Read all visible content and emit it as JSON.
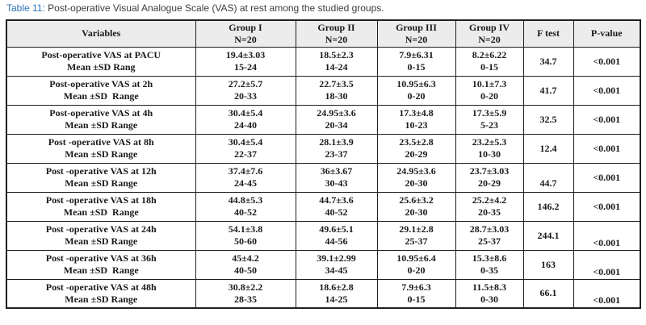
{
  "caption": {
    "label": "Table 11:",
    "text": " Post-operative Visual Analogue Scale (VAS) at rest among the studied groups."
  },
  "colors": {
    "caption_label": "#2e74b5",
    "caption_text": "#3d3d3d",
    "header_bg": "#ececec",
    "border": "#1f1f1f",
    "text": "#1a1a1a"
  },
  "table": {
    "columns": [
      {
        "label": "Variables",
        "sub": ""
      },
      {
        "label": "Group I",
        "sub": "N=20"
      },
      {
        "label": "Group II",
        "sub": "N=20"
      },
      {
        "label": "Group III",
        "sub": "N=20"
      },
      {
        "label": "Group IV",
        "sub": "N=20"
      },
      {
        "label": "F test",
        "sub": ""
      },
      {
        "label": "P-value",
        "sub": ""
      }
    ],
    "rows": [
      {
        "variable": "Post-operative VAS at PACU",
        "measure": "Mean ±SD Rang",
        "groups": [
          {
            "mean": "19.4±3.03",
            "range": "15-24"
          },
          {
            "mean": "18.5±2.3",
            "range": "14-24"
          },
          {
            "mean": "7.9±6.31",
            "range": "0-15"
          },
          {
            "mean": "8.2±6.22",
            "range": "0-15"
          }
        ],
        "f": "34.7",
        "p": "<0.001"
      },
      {
        "variable": "Post-operative VAS at 2h",
        "measure": "Mean ±SD  Range",
        "groups": [
          {
            "mean": "27.2±5.7",
            "range": "20-33"
          },
          {
            "mean": "22.7±3.5",
            "range": "18-30"
          },
          {
            "mean": "10.95±6.3",
            "range": "0-20"
          },
          {
            "mean": "10.1±7.3",
            "range": "0-20"
          }
        ],
        "f": "41.7",
        "p": "<0.001"
      },
      {
        "variable": "Post-operative VAS at 4h",
        "measure": "Mean ±SD Range",
        "groups": [
          {
            "mean": "30.4±5.4",
            "range": "24-40"
          },
          {
            "mean": "24.95±3.6",
            "range": "20-34"
          },
          {
            "mean": "17.3±4.8",
            "range": "10-23"
          },
          {
            "mean": "17.3±5.9",
            "range": "5-23"
          }
        ],
        "f": "32.5",
        "p": "<0.001"
      },
      {
        "variable": "Post -operative VAS at 8h",
        "measure": "Mean ±SD Range",
        "groups": [
          {
            "mean": "30.4±5.4",
            "range": "22-37"
          },
          {
            "mean": "28.1±3.9",
            "range": "23-37"
          },
          {
            "mean": "23.5±2.8",
            "range": "20-29"
          },
          {
            "mean": "23.2±5.3",
            "range": "10-30"
          }
        ],
        "f": "12.4",
        "p": "<0.001"
      },
      {
        "variable": "Post -operative VAS at 12h",
        "measure": "Mean ±SD Range",
        "groups": [
          {
            "mean": "37.4±7.6",
            "range": "24-45"
          },
          {
            "mean": "36±3.67",
            "range": "30-43"
          },
          {
            "mean": "24.95±3.6",
            "range": "20-30"
          },
          {
            "mean": "23.7±3.03",
            "range": "20-29"
          }
        ],
        "f": "44.7",
        "p": "<0.001"
      },
      {
        "variable": "Post -operative VAS at 18h",
        "measure": "Mean ±SD  Range",
        "groups": [
          {
            "mean": "44.8±5.3",
            "range": "40-52"
          },
          {
            "mean": "44.7±3.6",
            "range": "40-52"
          },
          {
            "mean": "25.6±3.2",
            "range": "20-30"
          },
          {
            "mean": "25.2±4.2",
            "range": "20-35"
          }
        ],
        "f": "146.2",
        "p": "<0.001"
      },
      {
        "variable": "Post -operative VAS at 24h",
        "measure": "Mean ±SD Range",
        "groups": [
          {
            "mean": "54.1±3.8",
            "range": "50-60"
          },
          {
            "mean": "49.6±5.1",
            "range": "44-56"
          },
          {
            "mean": "29.1±2.8",
            "range": "25-37"
          },
          {
            "mean": "28.7±3.03",
            "range": "25-37"
          }
        ],
        "f": "244.1",
        "p": "<0.001"
      },
      {
        "variable": "Post -operative VAS at 36h",
        "measure": "Mean ±SD  Range",
        "groups": [
          {
            "mean": "45±4.2",
            "range": "40-50"
          },
          {
            "mean": "39.1±2.99",
            "range": "34-45"
          },
          {
            "mean": "10.95±6.4",
            "range": "0-20"
          },
          {
            "mean": "15.3±8.6",
            "range": "0-35"
          }
        ],
        "f": "163",
        "p": "<0.001"
      },
      {
        "variable": "Post -operative VAS at 48h",
        "measure": "Mean ±SD Range",
        "groups": [
          {
            "mean": "30.8±2.2",
            "range": "28-35"
          },
          {
            "mean": "18.6±2.8",
            "range": "14-25"
          },
          {
            "mean": "7.9±6.3",
            "range": "0-15"
          },
          {
            "mean": "11.5±8.3",
            "range": "0-30"
          }
        ],
        "f": "66.1",
        "p": "<0.001"
      }
    ]
  }
}
